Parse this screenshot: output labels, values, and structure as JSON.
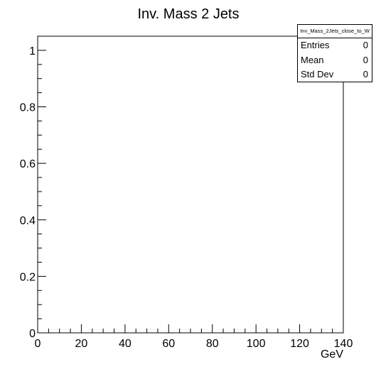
{
  "chart_data": {
    "type": "bar",
    "title": "Inv. Mass 2 Jets",
    "xlabel": "GeV",
    "ylabel": "",
    "xlim": [
      0,
      140
    ],
    "ylim": [
      0,
      1.05
    ],
    "x_ticks": [
      0,
      20,
      40,
      60,
      80,
      100,
      120,
      140
    ],
    "x_tick_labels": [
      "0",
      "20",
      "40",
      "60",
      "80",
      "100",
      "120",
      "140"
    ],
    "y_ticks": [
      0,
      0.2,
      0.4,
      0.6,
      0.8,
      1
    ],
    "y_tick_labels": [
      "0",
      "0.2",
      "0.4",
      "0.6",
      "0.8",
      "1"
    ],
    "x_minor_step": 5,
    "y_minor_step": 0.05,
    "grid": false,
    "values": [],
    "stats": {
      "name": "Inv_Mass_2Jets_close_to_W",
      "entries_label": "Entries",
      "entries_value": "0",
      "mean_label": "Mean",
      "mean_value": "0",
      "stddev_label": "Std Dev",
      "stddev_value": "0"
    }
  }
}
